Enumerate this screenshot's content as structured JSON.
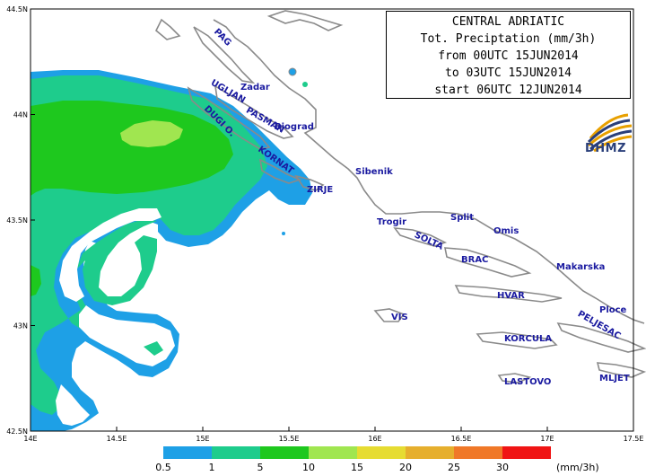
{
  "title": {
    "region": "CENTRAL ADRIATIC",
    "variable": "Tot. Preciptation (mm/3h)",
    "from": "from 00UTC 15JUN2014",
    "to": "to 03UTC 15JUN2014",
    "start": "start 06UTC 12JUN2014"
  },
  "logo": {
    "text": "DHMZ",
    "icon": "dhmz-logo-icon",
    "color": "#2a3f7a",
    "accent": "#e8a000"
  },
  "axes": {
    "lon_range": [
      14,
      17.5
    ],
    "lat_range": [
      42.5,
      44.5
    ],
    "x_ticks": [
      "14E",
      "14.5E",
      "15E",
      "15.5E",
      "16E",
      "16.5E",
      "17E",
      "17.5E"
    ],
    "y_ticks": [
      "44.5N",
      "44N",
      "43.5N",
      "43N",
      "42.5N"
    ]
  },
  "places": {
    "pag": "PAG",
    "zadar": "Zadar",
    "ugljan": "UGLJAN",
    "pasman": "PASMAN",
    "biograd": "Biograd",
    "dugi": "DUGI O.",
    "kornat": "KORNAT",
    "sibenik": "Sibenik",
    "zirje": "ZIRJE",
    "trogir": "Trogir",
    "split": "Split",
    "omis": "Omis",
    "solta": "SOLTA",
    "brac": "BRAC",
    "makarska": "Makarska",
    "hvar": "HVAR",
    "vis": "VIS",
    "ploce": "Ploce",
    "peljesac": "PELJESAC",
    "korcula": "KORCULA",
    "lastovo": "LASTOVO",
    "mljet": "MLJET"
  },
  "legend": {
    "unit": "(mm/3h)",
    "ticks": [
      "0.5",
      "1",
      "5",
      "10",
      "15",
      "20",
      "25",
      "30"
    ],
    "colors": [
      "#1ea0e6",
      "#1ecc8c",
      "#1ec81e",
      "#a0e650",
      "#e6dc32",
      "#e6af2d",
      "#f07828",
      "#f01414"
    ]
  }
}
